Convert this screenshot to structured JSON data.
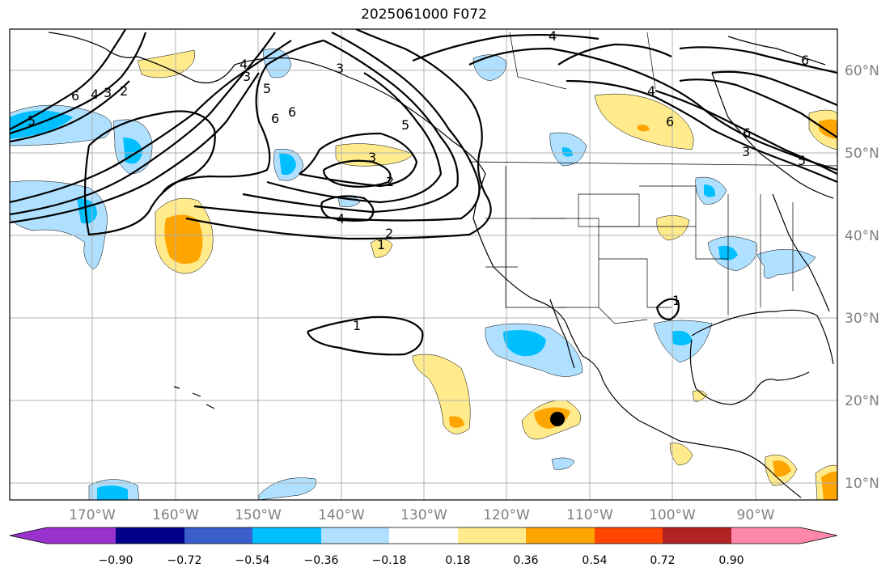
{
  "title": "2025061000 F072",
  "lat_labels": [
    "60°N",
    "50°N",
    "40°N",
    "30°N",
    "20°N",
    "10°N"
  ],
  "lon_labels": [
    "170°W",
    "160°W",
    "150°W",
    "140°W",
    "130°W",
    "120°W",
    "110°W",
    "100°W",
    "90°W"
  ],
  "colorbar": {
    "ticks": [
      "−0.90",
      "−0.72",
      "−0.54",
      "−0.36",
      "−0.18",
      "0.18",
      "0.36",
      "0.54",
      "0.72",
      "0.90"
    ],
    "colors": [
      "#9932cc",
      "#00008b",
      "#3a5fcd",
      "#00bfff",
      "#b0e0ff",
      "#ffffff",
      "#ffeb8c",
      "#ffa500",
      "#ff4500",
      "#b22222",
      "#ff88aa"
    ]
  },
  "contour_labels": [
    "4",
    "6",
    "5",
    "6",
    "4",
    "3",
    "2",
    "6",
    "5",
    "3",
    "6",
    "4",
    "3",
    "2",
    "4",
    "2",
    "1",
    "1",
    "1",
    "6",
    "5",
    "4",
    "3",
    "6",
    "3",
    "5"
  ],
  "marker": "storm-center-dot"
}
